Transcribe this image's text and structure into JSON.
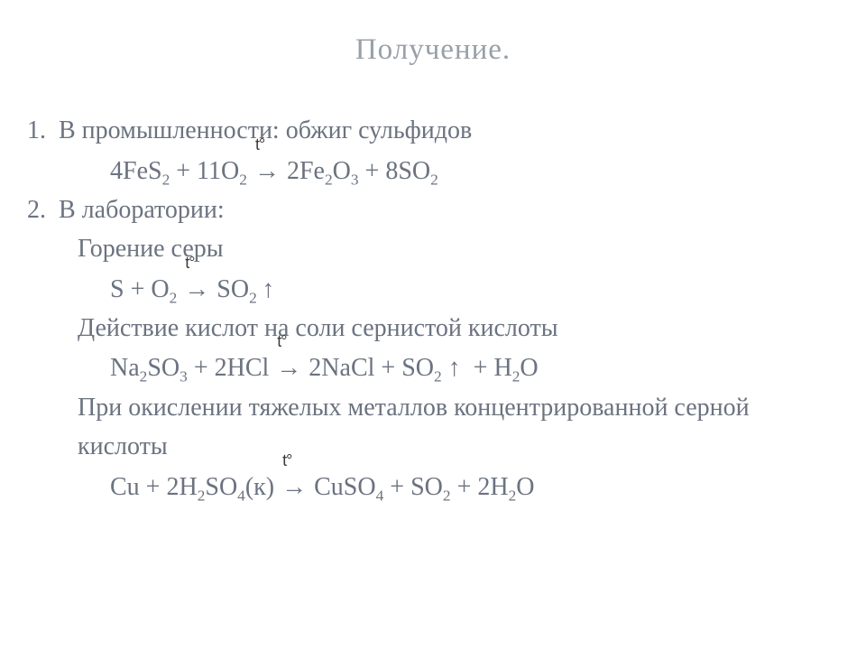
{
  "title": "Получение.",
  "colors": {
    "title": "#98a0a8",
    "body": "#6b7380",
    "background": "#ffffff",
    "arrow_symbol": "#3a3a3a"
  },
  "fontsizes": {
    "title": 33,
    "body": 28
  },
  "lines": [
    {
      "indent": 0,
      "html": "1.&nbsp;&nbsp;В промышленности: обжиг сульфидов"
    },
    {
      "indent": 2,
      "html": "4FeS<sub>2</sub> + 11O<sub>2</sub> <span class='arrow'><span class='t'>t°</span><span class='ar'>→</span></span> 2Fe<sub>2</sub>O<sub>3</sub> + 8SO<sub>2</sub>"
    },
    {
      "indent": 0,
      "html": "2.&nbsp;&nbsp;В лаборатории:"
    },
    {
      "indent": 1,
      "html": "Горение серы"
    },
    {
      "indent": 2,
      "html": "S + O<sub>2</sub> <span class='arrow'><span class='t'>t°</span><span class='ar'>→</span></span> SO<sub>2</sub>&thinsp;<span class='up'>↑</span>"
    },
    {
      "indent": 1,
      "html": "Действие кислот на соли сернистой кислоты"
    },
    {
      "indent": 2,
      "html": "Na<sub>2</sub>SO<sub>3</sub> + 2HCl <span class='arrow'><span class='t'>t°</span><span class='ar'>→</span></span> 2NaCl + SO<sub>2</sub> <span class='up'>↑</span> &nbsp;+ H<sub>2</sub>O"
    },
    {
      "indent": 1,
      "html": "При окислении тяжелых металлов концентрированной серной кислоты"
    },
    {
      "indent": 2,
      "html": "Cu + 2H<sub>2</sub>SO<sub>4</sub>(к) <span class='arrow'><span class='t'>t°</span><span class='ar'>→</span></span> CuSO<sub>4</sub> + SO<sub>2</sub> + 2H<sub>2</sub>O"
    }
  ]
}
